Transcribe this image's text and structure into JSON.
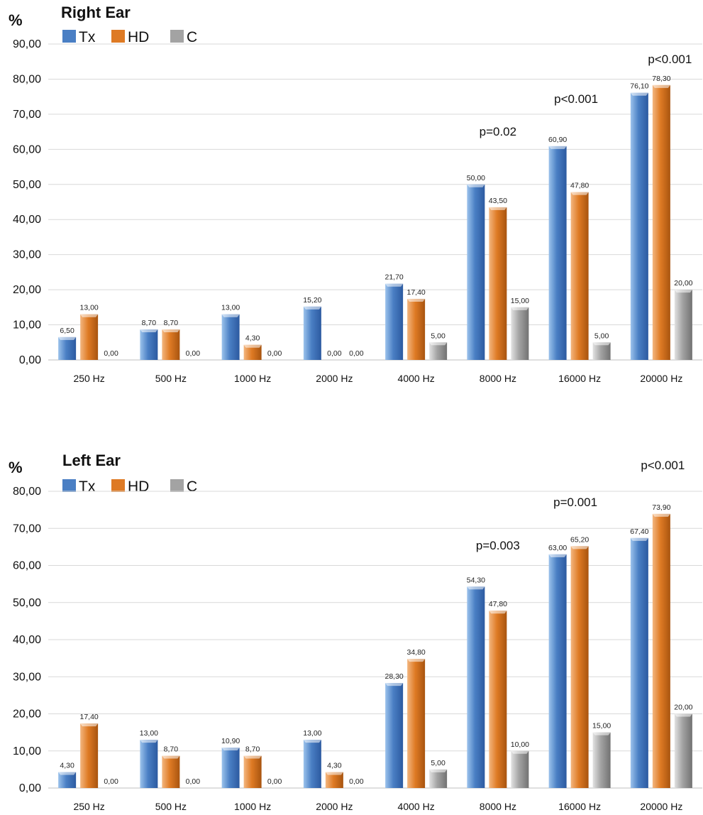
{
  "colors": {
    "Tx": [
      "#9cc3ec",
      "#4a7fc4",
      "#2c5aa0"
    ],
    "HD": [
      "#f3b67f",
      "#de7a24",
      "#a8540f"
    ],
    "C": [
      "#e2e2e2",
      "#a3a3a3",
      "#727272"
    ],
    "grid": "#d9d9d9",
    "axis": "#bfbfbf"
  },
  "chart_data": [
    {
      "type": "bar",
      "title": "Right Ear",
      "unit": "%",
      "categories": [
        "250 Hz",
        "500 Hz",
        "1000 Hz",
        "2000 Hz",
        "4000 Hz",
        "8000 Hz",
        "16000 Hz",
        "20000 Hz"
      ],
      "series": [
        {
          "name": "Tx",
          "values": [
            6.5,
            8.7,
            13.0,
            15.2,
            21.7,
            50.0,
            60.9,
            76.1
          ],
          "labels": [
            "6,50",
            "8,70",
            "13,00",
            "15,20",
            "21,70",
            "50,00",
            "60,90",
            "76,10"
          ]
        },
        {
          "name": "HD",
          "values": [
            13.0,
            8.7,
            4.3,
            0.0,
            17.4,
            43.5,
            47.8,
            78.3
          ],
          "labels": [
            "13,00",
            "8,70",
            "4,30",
            "0,00",
            "17,40",
            "43,50",
            "47,80",
            "78,30"
          ]
        },
        {
          "name": "C",
          "values": [
            0.0,
            0.0,
            0.0,
            0.0,
            5.0,
            15.0,
            5.0,
            20.0
          ],
          "labels": [
            "0,00",
            "0,00",
            "0,00",
            "0,00",
            "5,00",
            "15,00",
            "5,00",
            "20,00"
          ]
        }
      ],
      "ylim": [
        0,
        90
      ],
      "yticks": [
        "0,00",
        "10,00",
        "20,00",
        "30,00",
        "40,00",
        "50,00",
        "60,00",
        "70,00",
        "80,00",
        "90,00"
      ],
      "grid": true,
      "legend": "top-left",
      "annotations": [
        {
          "text": "p=0.02",
          "category": "8000 Hz"
        },
        {
          "text": "p<0.001",
          "category": "16000 Hz"
        },
        {
          "text": "p<0.001",
          "category": "20000 Hz"
        }
      ]
    },
    {
      "type": "bar",
      "title": "Left Ear",
      "unit": "%",
      "categories": [
        "250 Hz",
        "500 Hz",
        "1000 Hz",
        "2000 Hz",
        "4000 Hz",
        "8000 Hz",
        "16000 Hz",
        "20000 Hz"
      ],
      "series": [
        {
          "name": "Tx",
          "values": [
            4.3,
            13.0,
            10.9,
            13.0,
            28.3,
            54.3,
            63.0,
            67.4
          ],
          "labels": [
            "4,30",
            "13,00",
            "10,90",
            "13,00",
            "28,30",
            "54,30",
            "63,00",
            "67,40"
          ]
        },
        {
          "name": "HD",
          "values": [
            17.4,
            8.7,
            8.7,
            4.3,
            34.8,
            47.8,
            65.2,
            73.9
          ],
          "labels": [
            "17,40",
            "8,70",
            "8,70",
            "4,30",
            "34,80",
            "47,80",
            "65,20",
            "73,90"
          ]
        },
        {
          "name": "C",
          "values": [
            0.0,
            0.0,
            0.0,
            0.0,
            5.0,
            10.0,
            15.0,
            20.0
          ],
          "labels": [
            "0,00",
            "0,00",
            "0,00",
            "0,00",
            "5,00",
            "10,00",
            "15,00",
            "20,00"
          ]
        }
      ],
      "ylim": [
        0,
        80
      ],
      "yticks": [
        "0,00",
        "10,00",
        "20,00",
        "30,00",
        "40,00",
        "50,00",
        "60,00",
        "70,00",
        "80,00"
      ],
      "grid": true,
      "legend": "top-left",
      "annotations": [
        {
          "text": "p=0.003",
          "category": "8000 Hz"
        },
        {
          "text": "p=0.001",
          "category": "16000 Hz"
        },
        {
          "text": "p<0.001",
          "category": "20000 Hz"
        }
      ]
    }
  ]
}
